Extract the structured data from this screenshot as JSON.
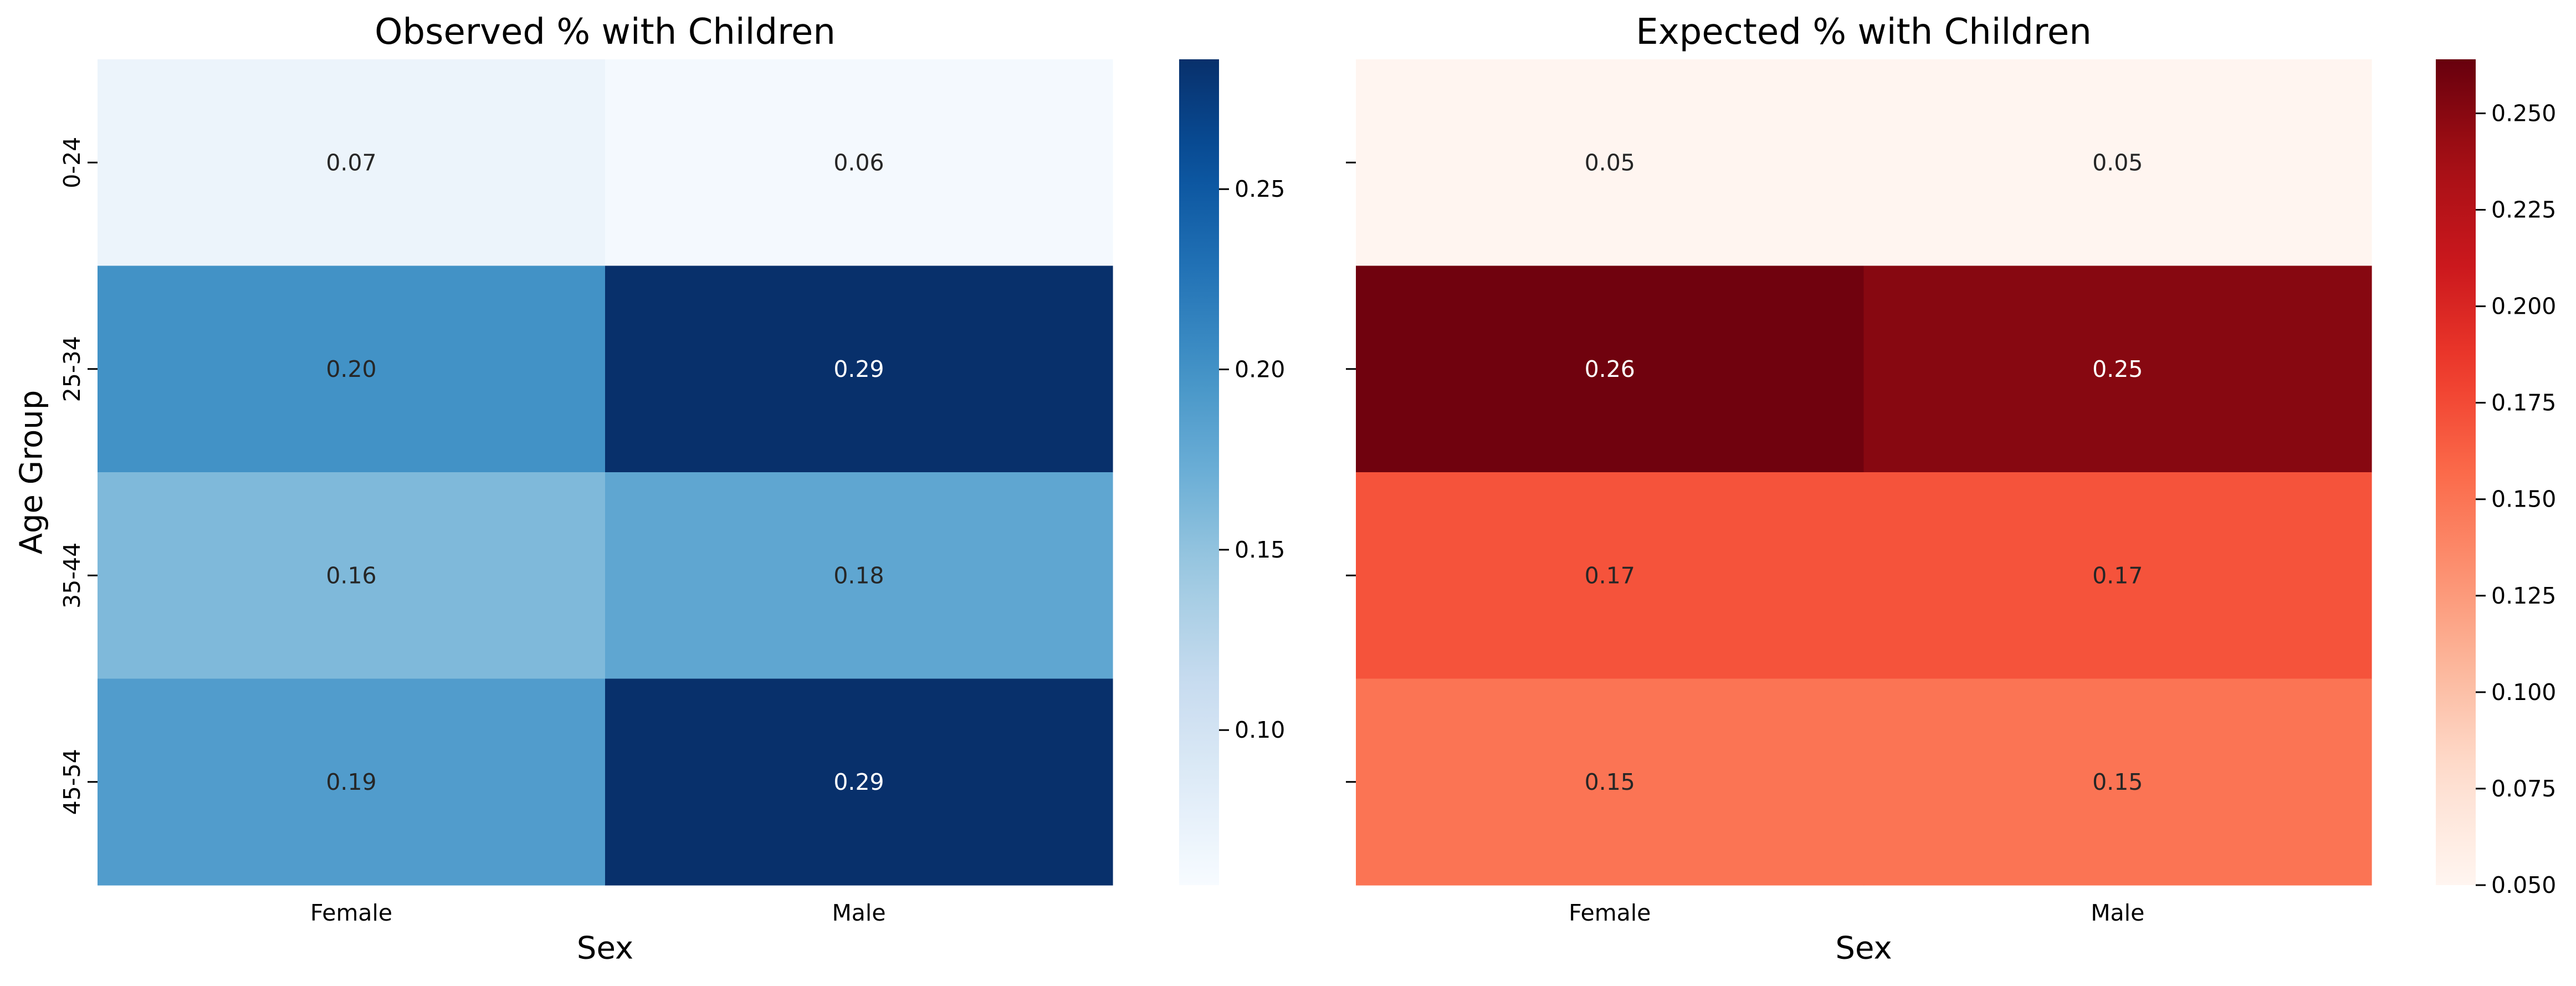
{
  "chart_data": [
    {
      "type": "heatmap",
      "title": "Observed % with Children",
      "xlabel": "Sex",
      "ylabel": "Age Group",
      "x_categories": [
        "Female",
        "Male"
      ],
      "y_categories": [
        "0-24",
        "25-34",
        "35-44",
        "45-54"
      ],
      "values": [
        [
          0.07,
          0.06
        ],
        [
          0.2,
          0.29
        ],
        [
          0.16,
          0.18
        ],
        [
          0.19,
          0.29
        ]
      ],
      "cell_labels": [
        [
          "0.07",
          "0.06"
        ],
        [
          "0.20",
          "0.29"
        ],
        [
          "0.16",
          "0.18"
        ],
        [
          "0.19",
          "0.29"
        ]
      ],
      "colormap": "Blues",
      "colorbar": {
        "range": [
          0.057,
          0.286
        ],
        "ticks": [
          0.1,
          0.15,
          0.2,
          0.25
        ],
        "tick_labels": [
          "0.10",
          "0.15",
          "0.20",
          "0.25"
        ]
      },
      "grid": false
    },
    {
      "type": "heatmap",
      "title": "Expected % with Children",
      "xlabel": "Sex",
      "ylabel": "",
      "x_categories": [
        "Female",
        "Male"
      ],
      "y_categories": [
        "0-24",
        "25-34",
        "35-44",
        "45-54"
      ],
      "values": [
        [
          0.05,
          0.05
        ],
        [
          0.26,
          0.25
        ],
        [
          0.17,
          0.17
        ],
        [
          0.15,
          0.15
        ]
      ],
      "cell_labels": [
        [
          "0.05",
          "0.05"
        ],
        [
          "0.26",
          "0.25"
        ],
        [
          "0.17",
          "0.17"
        ],
        [
          "0.15",
          "0.15"
        ]
      ],
      "colormap": "Reds",
      "colorbar": {
        "range": [
          0.05,
          0.264
        ],
        "ticks": [
          0.05,
          0.075,
          0.1,
          0.125,
          0.15,
          0.175,
          0.2,
          0.225,
          0.25
        ],
        "tick_labels": [
          "0.050",
          "0.075",
          "0.100",
          "0.125",
          "0.150",
          "0.175",
          "0.200",
          "0.225",
          "0.250"
        ]
      },
      "grid": false
    }
  ]
}
